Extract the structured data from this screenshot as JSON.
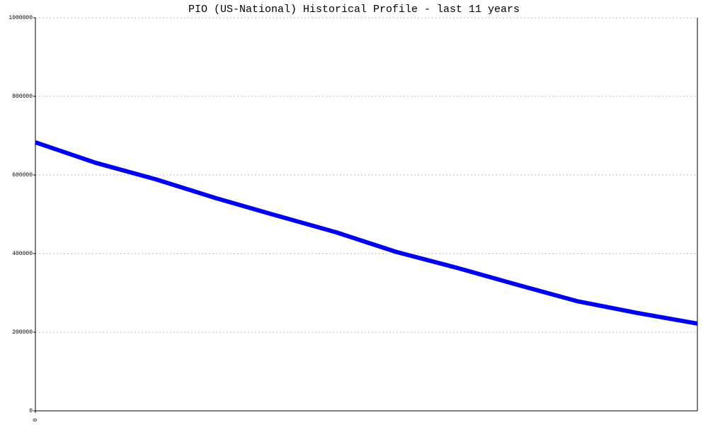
{
  "chart_data": {
    "type": "line",
    "title": "PIO (US-National) Historical Profile - last 11 years",
    "x": [
      0,
      1,
      2,
      3,
      4,
      5,
      6,
      7,
      8,
      9,
      10,
      11
    ],
    "series": [
      {
        "color": "#0000ee",
        "values": [
          683000,
          631000,
          589000,
          541000,
          497000,
          454000,
          404000,
          364000,
          321000,
          279000,
          249000,
          222000
        ]
      }
    ],
    "xlim": [
      0,
      11
    ],
    "xticks": [
      0
    ],
    "ylim": [
      0,
      1000000
    ],
    "yticks": [
      0,
      200000,
      400000,
      600000,
      800000,
      1000000
    ],
    "grid": true
  }
}
